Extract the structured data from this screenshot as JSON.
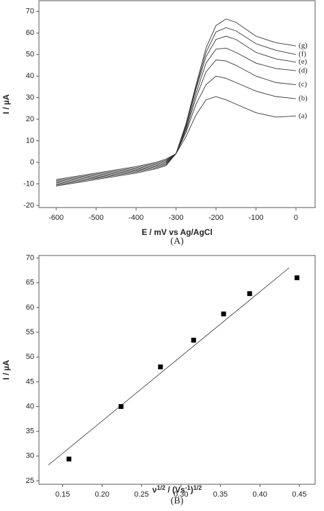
{
  "chart_data": [
    {
      "type": "line",
      "caption": "(A)",
      "x_label": "E / mV vs Ag/AgCl",
      "y_label": "I / µA",
      "x": [
        -600,
        -500,
        -400,
        -350,
        -325,
        -300,
        -275,
        -250,
        -225,
        -200,
        -175,
        -150,
        -100,
        -50,
        0
      ],
      "series": [
        {
          "name": "(a)",
          "color": "#333333",
          "values": [
            -8,
            -5,
            -2,
            0,
            1.5,
            4,
            12,
            22,
            29,
            30.5,
            29,
            27,
            23,
            21,
            21.5
          ]
        },
        {
          "name": "(b)",
          "color": "#333333",
          "values": [
            -8.5,
            -5.5,
            -2.5,
            -0.5,
            1,
            4,
            14,
            27,
            36,
            40,
            39,
            37,
            33,
            30.5,
            29.5
          ]
        },
        {
          "name": "(c)",
          "color": "#333333",
          "values": [
            -9,
            -6,
            -3,
            -1,
            0.5,
            4,
            15,
            30,
            42,
            47.5,
            47,
            45,
            40,
            37,
            36
          ]
        },
        {
          "name": "(d)",
          "color": "#333333",
          "values": [
            -9.5,
            -6.5,
            -3.5,
            -1.5,
            0,
            4,
            16,
            32,
            46,
            52.5,
            53,
            51,
            46,
            43.5,
            42.5
          ]
        },
        {
          "name": "(e)",
          "color": "#333333",
          "values": [
            -10,
            -7,
            -4,
            -2,
            -0.5,
            4,
            17,
            34,
            49,
            57,
            58.5,
            57,
            51,
            48,
            46.5
          ]
        },
        {
          "name": "(f)",
          "color": "#333333",
          "values": [
            -10.5,
            -7.5,
            -4.5,
            -2.5,
            -1,
            4,
            17.5,
            35,
            51,
            60.5,
            62.5,
            61,
            55,
            52,
            50
          ]
        },
        {
          "name": "(g)",
          "color": "#333333",
          "values": [
            -11,
            -8,
            -5,
            -3,
            -1.5,
            4,
            18,
            36,
            53,
            63.5,
            66.5,
            65,
            58.5,
            55.5,
            54
          ]
        }
      ],
      "xlim": [
        -643,
        48
      ],
      "ylim": [
        -21,
        75
      ],
      "xticks": [
        -600,
        -500,
        -400,
        -300,
        -200,
        -100,
        0
      ],
      "yticks": [
        -20,
        -10,
        0,
        10,
        20,
        30,
        40,
        50,
        60,
        70
      ]
    },
    {
      "type": "scatter",
      "caption": "(B)",
      "x_label": [
        "ν",
        "1/2",
        " / (Vs",
        "-1",
        ")",
        "1/2"
      ],
      "y_label": "I / µA",
      "x": [
        0.158,
        0.224,
        0.274,
        0.316,
        0.354,
        0.387,
        0.447
      ],
      "values": [
        29.4,
        40,
        48,
        53.4,
        58.7,
        62.8,
        66
      ],
      "color": "#000000",
      "fit": {
        "x": [
          0.132,
          0.437
        ],
        "y": [
          28.2,
          68
        ]
      },
      "xlim": [
        0.12,
        0.47
      ],
      "ylim": [
        24.3,
        70.5
      ],
      "xticks": [
        0.15,
        {
          "value": 0.2,
          "label": "0.20"
        },
        0.25,
        {
          "value": 0.3,
          "label": "0.30"
        },
        0.35,
        {
          "value": 0.4,
          "label": "0.40"
        },
        0.45
      ],
      "yticks": [
        25,
        30,
        35,
        40,
        45,
        50,
        55,
        60,
        65,
        70
      ]
    }
  ]
}
